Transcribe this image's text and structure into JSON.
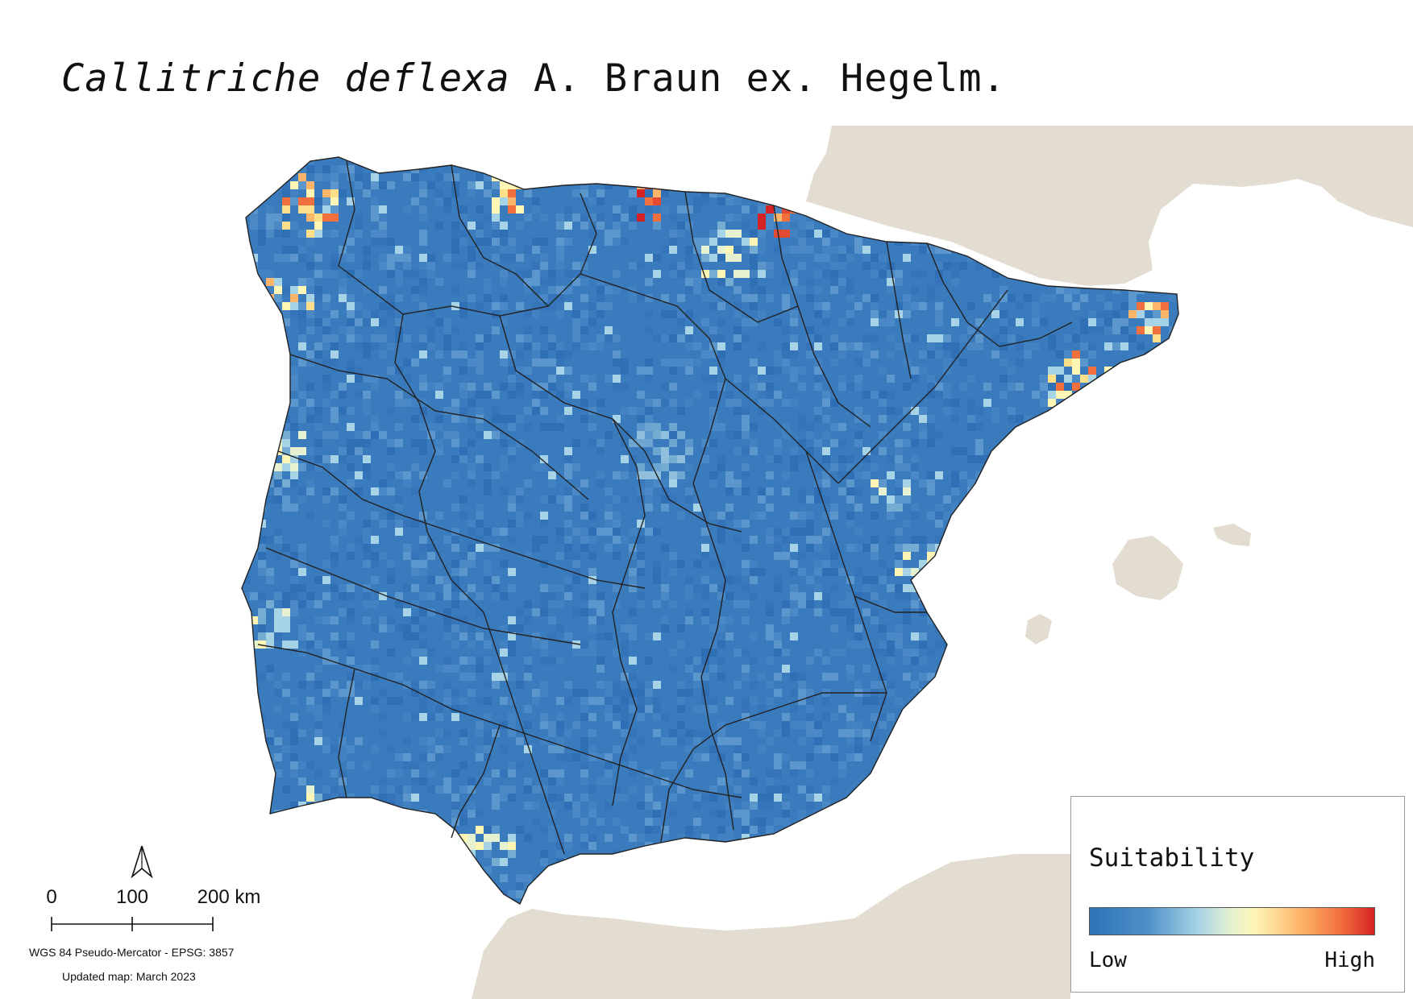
{
  "title": {
    "species": "Callitriche deflexa",
    "authority": "A. Braun ex. Hegelm."
  },
  "legend": {
    "title": "Suitability",
    "low_label": "Low",
    "high_label": "High",
    "colors": [
      "#2e72b8",
      "#4d90c7",
      "#a6d3e6",
      "#e6f2cf",
      "#fff6b6",
      "#fdb56a",
      "#f2703d",
      "#d62224"
    ]
  },
  "scale": {
    "ticks": [
      "0",
      "100",
      "200 km"
    ]
  },
  "north_arrow": {
    "icon": "north-arrow-icon"
  },
  "footer": {
    "projection": "WGS 84 Pseudo-Mercator  - EPSG: 3857",
    "updated": "Updated map: March 2023"
  },
  "colors": {
    "land_outside": "#e2ddd0",
    "sea": "#ffffff",
    "low": "#2e72b8",
    "high": "#d62224",
    "boundary": "#222222"
  },
  "hotspots": [
    {
      "region": "Galician coast",
      "level": "high"
    },
    {
      "region": "Cantabrian coast",
      "level": "high"
    },
    {
      "region": "Basque coast",
      "level": "high"
    },
    {
      "region": "Catalan coast",
      "level": "high"
    },
    {
      "region": "Valencian coast",
      "level": "medium"
    },
    {
      "region": "Portuguese coast",
      "level": "medium"
    },
    {
      "region": "Cádiz / Strait of Gibraltar",
      "level": "medium"
    }
  ]
}
